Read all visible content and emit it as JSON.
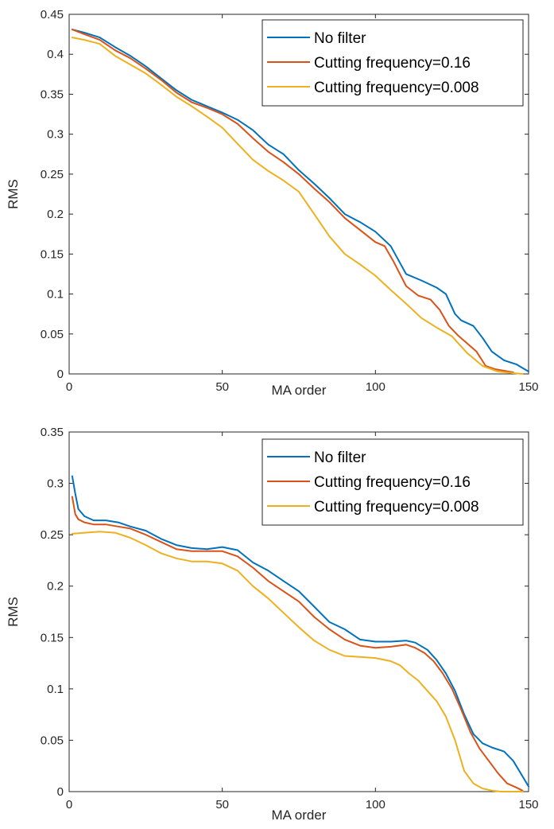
{
  "chart_data": [
    {
      "type": "line",
      "xlabel": "MA order",
      "ylabel": "RMS",
      "xlim": [
        0,
        150
      ],
      "ylim": [
        0,
        0.45
      ],
      "xticks": [
        "0",
        "50",
        "100",
        "150"
      ],
      "yticks": [
        "0",
        "0.05",
        "0.1",
        "0.15",
        "0.2",
        "0.25",
        "0.3",
        "0.35",
        "0.4",
        "0.45"
      ],
      "grid": false,
      "legend_position": "top-right",
      "series": [
        {
          "name": "No filter",
          "color": "#0072BD",
          "x": [
            1,
            5,
            10,
            15,
            20,
            25,
            30,
            35,
            40,
            45,
            50,
            55,
            60,
            65,
            70,
            75,
            80,
            85,
            90,
            95,
            100,
            105,
            110,
            115,
            120,
            123,
            126,
            128,
            132,
            135,
            138,
            142,
            146,
            150
          ],
          "y": [
            0.431,
            0.427,
            0.421,
            0.409,
            0.398,
            0.385,
            0.37,
            0.355,
            0.343,
            0.335,
            0.327,
            0.318,
            0.305,
            0.287,
            0.275,
            0.255,
            0.238,
            0.22,
            0.2,
            0.19,
            0.178,
            0.16,
            0.125,
            0.117,
            0.108,
            0.1,
            0.075,
            0.067,
            0.06,
            0.045,
            0.028,
            0.017,
            0.012,
            0.003
          ]
        },
        {
          "name": "Cutting frequency=0.16",
          "color": "#D95319",
          "x": [
            1,
            5,
            10,
            15,
            20,
            25,
            30,
            35,
            40,
            45,
            50,
            55,
            60,
            65,
            70,
            75,
            80,
            85,
            90,
            95,
            100,
            103,
            106,
            110,
            114,
            118,
            121,
            124,
            127,
            130,
            133,
            136,
            139,
            142,
            145
          ],
          "y": [
            0.431,
            0.425,
            0.418,
            0.405,
            0.395,
            0.382,
            0.368,
            0.352,
            0.34,
            0.333,
            0.325,
            0.313,
            0.295,
            0.278,
            0.265,
            0.25,
            0.232,
            0.215,
            0.195,
            0.18,
            0.165,
            0.16,
            0.14,
            0.11,
            0.098,
            0.093,
            0.08,
            0.06,
            0.048,
            0.038,
            0.028,
            0.01,
            0.006,
            0.004,
            0.002
          ]
        },
        {
          "name": "Cutting frequency=0.008",
          "color": "#EDB120",
          "x": [
            1,
            5,
            10,
            15,
            20,
            25,
            30,
            35,
            40,
            45,
            50,
            55,
            60,
            65,
            70,
            75,
            80,
            85,
            90,
            95,
            100,
            105,
            110,
            115,
            120,
            125,
            130,
            135,
            140,
            145,
            148
          ],
          "y": [
            0.421,
            0.418,
            0.413,
            0.398,
            0.387,
            0.376,
            0.362,
            0.347,
            0.335,
            0.322,
            0.308,
            0.288,
            0.268,
            0.254,
            0.242,
            0.228,
            0.2,
            0.172,
            0.15,
            0.137,
            0.123,
            0.105,
            0.088,
            0.07,
            0.058,
            0.047,
            0.026,
            0.01,
            0.003,
            0.001,
            0
          ]
        }
      ]
    },
    {
      "type": "line",
      "xlabel": "MA order",
      "ylabel": "RMS",
      "xlim": [
        0,
        150
      ],
      "ylim": [
        0,
        0.35
      ],
      "xticks": [
        "0",
        "50",
        "100",
        "150"
      ],
      "yticks": [
        "0",
        "0.05",
        "0.1",
        "0.15",
        "0.2",
        "0.25",
        "0.3",
        "0.35"
      ],
      "grid": false,
      "legend_position": "top-right",
      "series": [
        {
          "name": "No filter",
          "color": "#0072BD",
          "x": [
            1,
            2,
            3,
            5,
            8,
            12,
            16,
            20,
            25,
            30,
            35,
            40,
            45,
            50,
            55,
            60,
            65,
            70,
            75,
            80,
            85,
            90,
            95,
            100,
            105,
            110,
            113,
            117,
            120,
            123,
            126,
            129,
            132,
            135,
            138,
            142,
            145,
            148,
            150
          ],
          "y": [
            0.307,
            0.29,
            0.275,
            0.268,
            0.264,
            0.264,
            0.262,
            0.258,
            0.254,
            0.246,
            0.24,
            0.237,
            0.236,
            0.238,
            0.235,
            0.223,
            0.215,
            0.205,
            0.195,
            0.18,
            0.165,
            0.158,
            0.148,
            0.146,
            0.146,
            0.147,
            0.145,
            0.138,
            0.128,
            0.115,
            0.098,
            0.075,
            0.056,
            0.047,
            0.043,
            0.039,
            0.03,
            0.015,
            0.005
          ]
        },
        {
          "name": "Cutting frequency=0.16",
          "color": "#D95319",
          "x": [
            1,
            2,
            3,
            5,
            8,
            12,
            16,
            20,
            25,
            30,
            35,
            40,
            45,
            50,
            55,
            60,
            65,
            70,
            75,
            80,
            85,
            90,
            95,
            100,
            105,
            110,
            113,
            116,
            119,
            122,
            125,
            128,
            131,
            134,
            137,
            140,
            143,
            146,
            148
          ],
          "y": [
            0.287,
            0.27,
            0.265,
            0.262,
            0.26,
            0.26,
            0.258,
            0.256,
            0.25,
            0.243,
            0.236,
            0.234,
            0.234,
            0.234,
            0.229,
            0.218,
            0.205,
            0.195,
            0.185,
            0.17,
            0.158,
            0.148,
            0.142,
            0.14,
            0.141,
            0.143,
            0.14,
            0.135,
            0.127,
            0.115,
            0.1,
            0.08,
            0.058,
            0.042,
            0.03,
            0.018,
            0.008,
            0.004,
            0.001
          ]
        },
        {
          "name": "Cutting frequency=0.008",
          "color": "#EDB120",
          "x": [
            1,
            5,
            10,
            15,
            20,
            25,
            30,
            35,
            40,
            45,
            50,
            55,
            60,
            65,
            70,
            75,
            80,
            85,
            90,
            95,
            100,
            105,
            108,
            111,
            114,
            117,
            120,
            123,
            126,
            129,
            132,
            135,
            138,
            141,
            145,
            148
          ],
          "y": [
            0.251,
            0.252,
            0.253,
            0.252,
            0.247,
            0.24,
            0.232,
            0.227,
            0.224,
            0.224,
            0.222,
            0.215,
            0.2,
            0.188,
            0.174,
            0.16,
            0.147,
            0.138,
            0.132,
            0.131,
            0.13,
            0.127,
            0.123,
            0.115,
            0.108,
            0.098,
            0.088,
            0.073,
            0.05,
            0.02,
            0.008,
            0.003,
            0.001,
            0,
            0,
            0
          ]
        }
      ]
    }
  ]
}
